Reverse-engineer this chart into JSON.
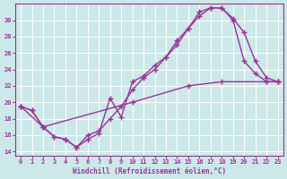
{
  "xlabel": "Windchill (Refroidissement éolien,°C)",
  "bg_color": "#cce8e8",
  "grid_color": "#ffffff",
  "line_color": "#993399",
  "xlim": [
    -0.5,
    23.5
  ],
  "ylim": [
    13.5,
    32
  ],
  "xticks": [
    0,
    1,
    2,
    3,
    4,
    5,
    6,
    7,
    8,
    9,
    10,
    11,
    12,
    13,
    14,
    15,
    16,
    17,
    18,
    19,
    20,
    21,
    22,
    23
  ],
  "yticks": [
    14,
    16,
    18,
    20,
    22,
    24,
    26,
    28,
    30
  ],
  "curves": [
    {
      "x": [
        0,
        1,
        2,
        3,
        4,
        5,
        6,
        7,
        8,
        9,
        10,
        11,
        12,
        13,
        14,
        15,
        16,
        17,
        18,
        19,
        20,
        21,
        22,
        23
      ],
      "y": [
        19.5,
        19,
        17,
        15.8,
        15.5,
        14.5,
        15.5,
        16.2,
        20.5,
        18.2,
        22.5,
        23.2,
        24.5,
        25.5,
        27.5,
        29,
        31,
        31.5,
        31.5,
        30,
        25,
        23.5,
        22.5,
        22.5
      ]
    },
    {
      "x": [
        0,
        1,
        2,
        3,
        4,
        5,
        6,
        7,
        8,
        9,
        10,
        11,
        12,
        13,
        14,
        15,
        16,
        17,
        18,
        19,
        20,
        21,
        22,
        23
      ],
      "y": [
        19.5,
        19,
        17,
        15.8,
        15.5,
        14.5,
        16,
        16.5,
        18,
        19.5,
        21.5,
        23,
        24,
        25.5,
        27,
        29,
        30.5,
        31.5,
        31.5,
        30.2,
        28.5,
        25,
        23,
        22.5
      ]
    },
    {
      "x": [
        0,
        2,
        10,
        15,
        18,
        22,
        23
      ],
      "y": [
        19.5,
        17,
        20,
        22,
        22.5,
        22.5,
        22.5
      ]
    }
  ],
  "marker": "+",
  "markersize": 4,
  "linewidth": 1.0
}
